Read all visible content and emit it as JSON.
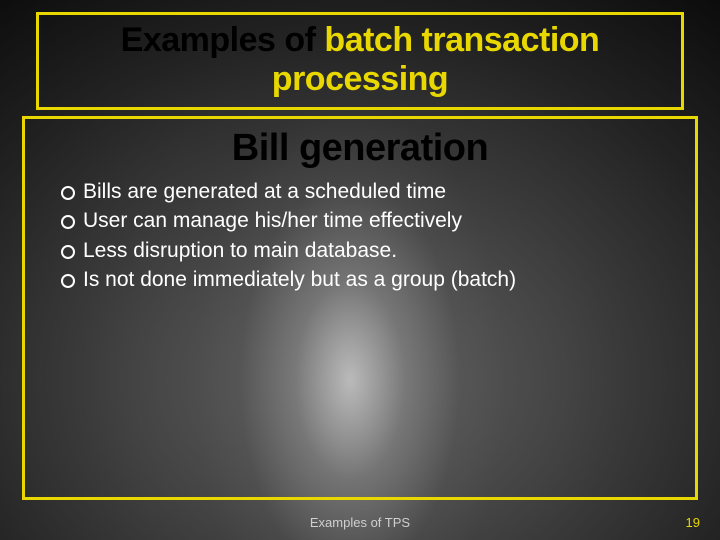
{
  "colors": {
    "accent_yellow": "#e8d800",
    "text_white": "#ffffff",
    "text_black": "#000000",
    "footer_gray": "#cfcfcf",
    "bg_light": "#6a6a6a",
    "bg_dark": "#0a0a0a"
  },
  "title": {
    "prefix": "Examples of ",
    "highlight": "batch transaction processing",
    "fontsize": 34,
    "font_weight": 900
  },
  "content": {
    "subtitle": "Bill generation",
    "subtitle_fontsize": 38,
    "subtitle_color": "#000000",
    "bullets": [
      "Bills are generated at a scheduled time",
      "User can manage his/her time effectively",
      "Less disruption to main database.",
      "Is not done immediately but as a group (batch)"
    ],
    "bullet_fontsize": 21,
    "bullet_marker": "hollow-circle",
    "bullet_color": "#ffffff"
  },
  "footer": {
    "text": "Examples of TPS",
    "page_number": "19"
  },
  "layout": {
    "slide_width": 720,
    "slide_height": 540,
    "title_border_width": 3,
    "content_border_width": 3
  }
}
